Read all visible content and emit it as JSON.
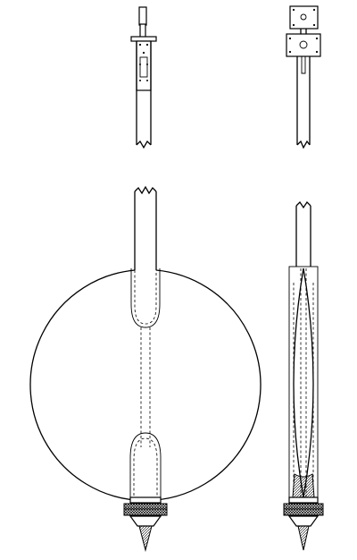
{
  "figure": {
    "views": [
      {
        "id": "front-top",
        "icon": "pendulum-suspension-front"
      },
      {
        "id": "side-top",
        "icon": "pendulum-suspension-side"
      },
      {
        "id": "front-bottom",
        "icon": "pendulum-bob-front"
      },
      {
        "id": "side-bottom",
        "icon": "pendulum-bob-side"
      }
    ],
    "colors": {
      "ink": "#000000",
      "paper": "#ffffff"
    }
  }
}
